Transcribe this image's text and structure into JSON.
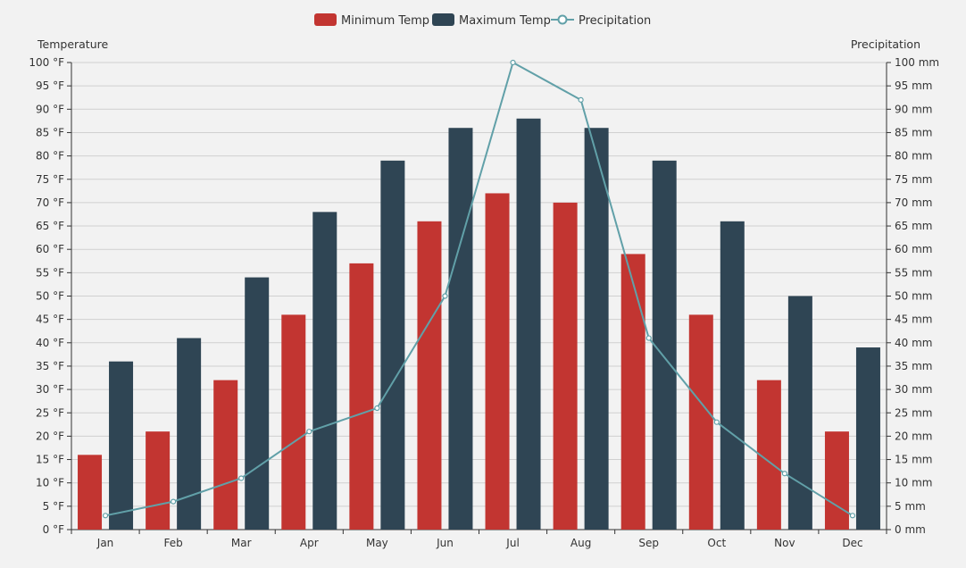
{
  "chart_data": {
    "type": "bar",
    "categories": [
      "Jan",
      "Feb",
      "Mar",
      "Apr",
      "May",
      "Jun",
      "Jul",
      "Aug",
      "Sep",
      "Oct",
      "Nov",
      "Dec"
    ],
    "series": [
      {
        "name": "Minimum Temp",
        "kind": "bar",
        "axis": "left",
        "color": "#c23531",
        "values": [
          16,
          21,
          32,
          46,
          57,
          66,
          72,
          70,
          59,
          46,
          32,
          21
        ]
      },
      {
        "name": "Maximum Temp",
        "kind": "bar",
        "axis": "left",
        "color": "#2f4554",
        "values": [
          36,
          41,
          54,
          68,
          79,
          86,
          88,
          86,
          79,
          66,
          50,
          39
        ]
      },
      {
        "name": "Precipitation",
        "kind": "line",
        "axis": "right",
        "color": "#61a0a8",
        "values": [
          3,
          6,
          11,
          21,
          26,
          50,
          100,
          92,
          41,
          23,
          12,
          3
        ]
      }
    ],
    "y_left": {
      "title": "Temperature",
      "min": 0,
      "max": 100,
      "step": 5,
      "unit": "°F"
    },
    "y_right": {
      "title": "Precipitation",
      "min": 0,
      "max": 100,
      "step": 5,
      "unit": "mm"
    },
    "legend_position": "top-center",
    "grid": true
  }
}
